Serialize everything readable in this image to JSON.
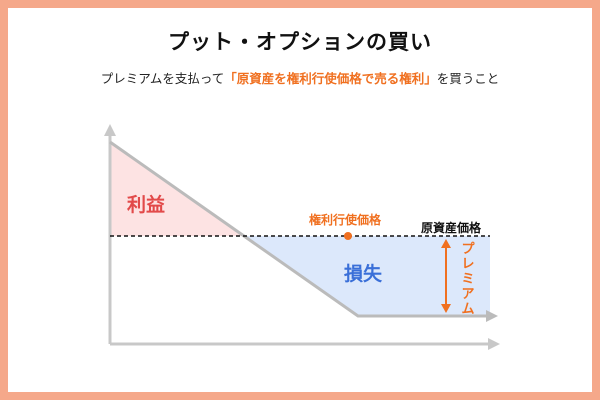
{
  "header": {
    "title": "プット・オプションの買い",
    "subtitle_before": "プレミアムを支払って",
    "subtitle_highlight": "「原資産を権利行使価格で売る権利」",
    "subtitle_after": "を買うこと"
  },
  "diagram": {
    "profit_label": "利益",
    "loss_label": "損失",
    "strike_label": "権利行使価格",
    "underlying_price_label": "原資産価格",
    "premium_label": "プレミアム"
  },
  "colors": {
    "background": "#f5a88a",
    "accent": "#f07020",
    "profit_fill": "#fde3e3",
    "profit_text": "#e24a4a",
    "loss_fill": "#dce8fb",
    "loss_text": "#3a6fd8",
    "axis": "#c8c8c8",
    "payoff_line": "#bbbbbb"
  }
}
